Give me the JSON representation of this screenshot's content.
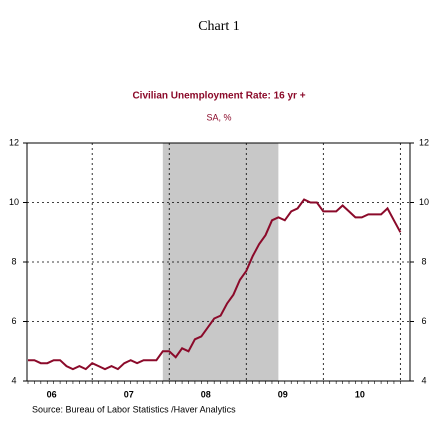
{
  "chart_data": {
    "type": "line",
    "title": "Chart 1",
    "subtitle": "Civilian Unemployment Rate: 16 yr +",
    "units": "SA, %",
    "source": "Source:  Bureau of Labor Statistics /Haver Analytics",
    "categories": [
      null,
      null,
      null,
      null,
      "06",
      null,
      null,
      null,
      null,
      null,
      null,
      null,
      null,
      null,
      null,
      null,
      "07",
      null,
      null,
      null,
      null,
      null,
      null,
      null,
      null,
      null,
      null,
      null,
      "08",
      null,
      null,
      null,
      null,
      null,
      null,
      null,
      null,
      null,
      null,
      null,
      "09",
      null,
      null,
      null,
      null,
      null,
      null,
      null,
      null,
      null,
      null,
      null,
      "10",
      null,
      null,
      null,
      null,
      null,
      null
    ],
    "series": [
      {
        "name": "Civilian Unemployment Rate",
        "color": "#8b0a2a",
        "values": [
          4.7,
          4.7,
          4.6,
          4.6,
          4.7,
          4.7,
          4.5,
          4.4,
          4.5,
          4.4,
          4.6,
          4.5,
          4.4,
          4.5,
          4.4,
          4.6,
          4.7,
          4.6,
          4.7,
          4.7,
          4.7,
          5.0,
          5.0,
          4.8,
          5.1,
          5.0,
          5.4,
          5.5,
          5.8,
          6.1,
          6.2,
          6.6,
          6.9,
          7.4,
          7.7,
          8.2,
          8.6,
          8.9,
          9.4,
          9.5,
          9.4,
          9.7,
          9.8,
          10.1,
          10.0,
          10.0,
          9.7,
          9.7,
          9.7,
          9.9,
          9.7,
          9.5,
          9.5,
          9.6,
          9.6,
          9.6,
          9.8,
          9.4,
          9.0
        ]
      }
    ],
    "ylim": [
      4,
      12
    ],
    "yticks": [
      4,
      6,
      8,
      10,
      12
    ],
    "grid": true,
    "shaded_range": [
      21,
      39
    ],
    "xgrid_at": [
      10,
      22,
      34,
      46,
      58
    ]
  }
}
